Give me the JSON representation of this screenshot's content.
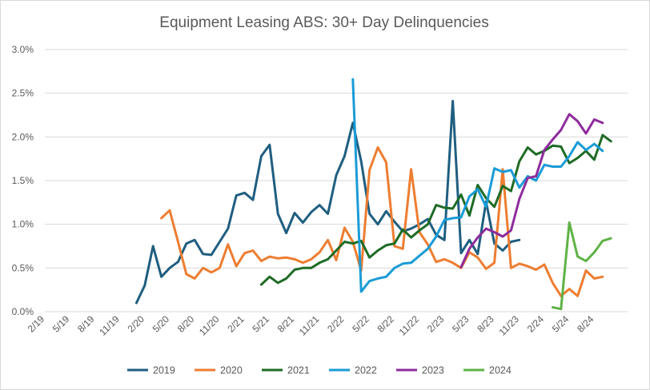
{
  "chart_data": {
    "type": "line",
    "title": "Equipment Leasing ABS: 30+ Day Delinquencies",
    "xlabel": "",
    "ylabel": "",
    "ylim": [
      0,
      3.0
    ],
    "yticks": [
      "0.0%",
      "0.5%",
      "1.0%",
      "1.5%",
      "2.0%",
      "2.5%",
      "3.0%"
    ],
    "x_tick_labels": [
      "2/19",
      "5/19",
      "8/19",
      "11/19",
      "2/20",
      "5/20",
      "8/20",
      "11/20",
      "2/21",
      "5/21",
      "8/21",
      "11/21",
      "2/22",
      "5/22",
      "8/22",
      "11/22",
      "2/23",
      "5/23",
      "8/23",
      "11/23",
      "2/24",
      "5/24",
      "8/24"
    ],
    "x_start": "2019-02",
    "grid": "horizontal",
    "legend_position": "bottom",
    "series": [
      {
        "name": "2019",
        "color": "#1f5e80",
        "start": "2020-01",
        "values": [
          0.1,
          0.3,
          0.75,
          0.4,
          0.5,
          0.57,
          0.78,
          0.82,
          0.66,
          0.65,
          0.8,
          0.95,
          1.33,
          1.36,
          1.28,
          1.78,
          1.91,
          1.12,
          0.9,
          1.13,
          1.02,
          1.14,
          1.22,
          1.12,
          1.56,
          1.78,
          2.16,
          1.72,
          1.12,
          1.0,
          1.15,
          1.03,
          0.92,
          0.95,
          1.0,
          1.06,
          0.88,
          0.82,
          2.41,
          0.67,
          0.82,
          0.66,
          1.26,
          0.78,
          0.7,
          0.8,
          0.82
        ]
      },
      {
        "name": "2020",
        "color": "#ed7d31",
        "start": "2020-04",
        "values": [
          1.07,
          1.16,
          0.8,
          0.43,
          0.38,
          0.5,
          0.45,
          0.5,
          0.77,
          0.52,
          0.67,
          0.7,
          0.58,
          0.63,
          0.61,
          0.62,
          0.6,
          0.56,
          0.6,
          0.68,
          0.82,
          0.59,
          0.96,
          0.8,
          0.47,
          1.62,
          1.88,
          1.71,
          0.75,
          0.72,
          1.63,
          0.91,
          0.77,
          0.57,
          0.6,
          0.56,
          0.5,
          0.68,
          0.62,
          0.49,
          0.56,
          1.63,
          0.5,
          0.55,
          0.52,
          0.48,
          0.54,
          0.33,
          0.18,
          0.26,
          0.18,
          0.47,
          0.38,
          0.4
        ]
      },
      {
        "name": "2021",
        "color": "#1e6b25",
        "start": "2021-04",
        "values": [
          0.31,
          0.4,
          0.33,
          0.38,
          0.48,
          0.5,
          0.5,
          0.56,
          0.6,
          0.7,
          0.8,
          0.78,
          0.81,
          0.62,
          0.7,
          0.76,
          0.78,
          0.94,
          0.85,
          0.93,
          1.0,
          1.22,
          1.19,
          1.18,
          1.34,
          1.1,
          1.45,
          1.3,
          1.2,
          1.44,
          1.38,
          1.72,
          1.88,
          1.8,
          1.84,
          1.9,
          1.89,
          1.7,
          1.76,
          1.84,
          1.74,
          2.02,
          1.95
        ]
      },
      {
        "name": "2022",
        "color": "#1a9bd7",
        "start": "2022-03",
        "values": [
          2.66,
          0.23,
          0.35,
          0.38,
          0.4,
          0.5,
          0.55,
          0.56,
          0.64,
          0.72,
          0.86,
          1.05,
          1.07,
          1.08,
          1.32,
          1.4,
          1.2,
          1.64,
          1.6,
          1.62,
          1.42,
          1.55,
          1.5,
          1.68,
          1.66,
          1.66,
          1.78,
          1.94,
          1.85,
          1.92,
          1.84
        ]
      },
      {
        "name": "2023",
        "color": "#8e2c9c",
        "start": "2023-04",
        "values": [
          0.51,
          0.72,
          0.85,
          0.95,
          0.91,
          0.86,
          0.93,
          1.29,
          1.53,
          1.55,
          1.85,
          1.97,
          2.08,
          2.26,
          2.18,
          2.04,
          2.2,
          2.16
        ]
      },
      {
        "name": "2024",
        "color": "#5fb246",
        "start": "2024-03",
        "values": [
          0.05,
          0.03,
          1.02,
          0.63,
          0.58,
          0.68,
          0.81,
          0.84
        ]
      }
    ]
  }
}
